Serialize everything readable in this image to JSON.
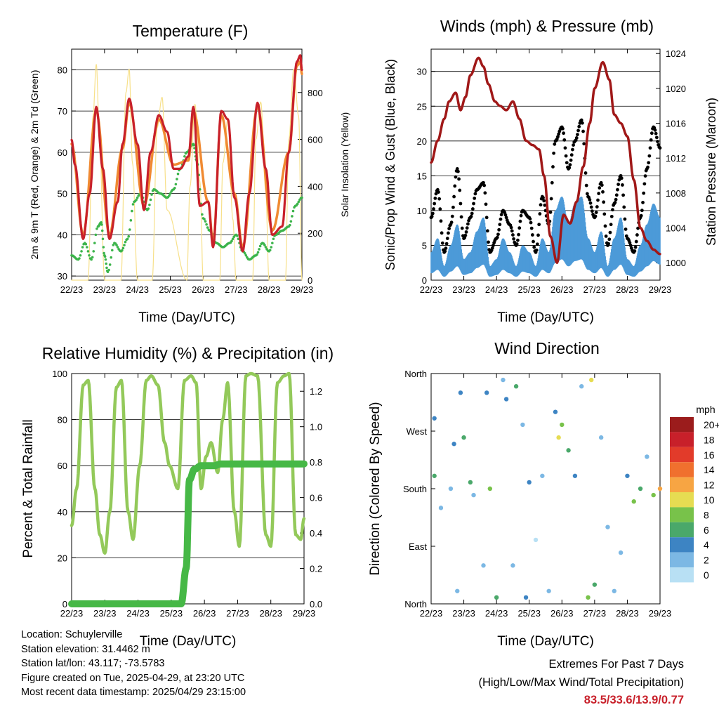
{
  "x_tick_labels": [
    "22/23",
    "23/23",
    "24/23",
    "25/23",
    "26/23",
    "27/23",
    "28/23",
    "29/23"
  ],
  "chart_data": [
    {
      "type": "line",
      "title": "Temperature (F)",
      "xlabel": "Time (Day/UTC)",
      "ylabel": "2m & 9m T (Red, Orange) & 2m Td (Green)",
      "y2label": "Solar Insolation (Yellow)",
      "ylim": [
        29,
        85
      ],
      "yticks": [
        30,
        40,
        50,
        60,
        70,
        80
      ],
      "y2lim": [
        0,
        985
      ],
      "y2ticks": [
        0,
        200,
        400,
        600,
        800
      ],
      "grid": true,
      "colors": {
        "t2m": "#c8202a",
        "t9m": "#f08a32",
        "td": "#3cb44b",
        "solar": "#f7e08a"
      },
      "series": [
        {
          "key": "t2m",
          "x": [
            0.0,
            0.1,
            0.35,
            0.55,
            0.75,
            0.95,
            1.15,
            1.4,
            1.55,
            1.75,
            2.0,
            2.2,
            2.4,
            2.65,
            2.9,
            3.1,
            3.3,
            3.55,
            3.7,
            3.9,
            4.15,
            4.3,
            4.55,
            4.75,
            4.95,
            5.2,
            5.4,
            5.65,
            5.9,
            6.1,
            6.4,
            6.6,
            6.85,
            6.95,
            7.0
          ],
          "y": [
            63.0,
            57.0,
            39.0,
            50.0,
            71.0,
            56.0,
            39.0,
            48.0,
            62.0,
            73.0,
            62.0,
            46.0,
            60.0,
            69.0,
            65.0,
            56.0,
            56.0,
            59.0,
            71.0,
            47.0,
            48.0,
            37.0,
            70.0,
            68.0,
            49.0,
            36.0,
            50.0,
            72.0,
            56.0,
            40.0,
            42.0,
            60.0,
            82.0,
            83.5,
            80.0
          ]
        },
        {
          "key": "t9m",
          "x": [
            0.0,
            0.35,
            0.75,
            1.15,
            1.55,
            1.75,
            2.2,
            2.65,
            3.1,
            3.55,
            3.7,
            4.15,
            4.3,
            4.55,
            4.95,
            5.2,
            5.65,
            6.1,
            6.6,
            6.85,
            6.95,
            7.0
          ],
          "y": [
            62.0,
            40.0,
            70.0,
            40.0,
            61.0,
            72.0,
            47.0,
            68.0,
            57.0,
            58.0,
            70.0,
            48.0,
            38.0,
            69.0,
            50.0,
            37.0,
            71.0,
            41.0,
            60.0,
            81.0,
            82.0,
            79.0
          ]
        },
        {
          "key": "td",
          "x": [
            0.0,
            0.2,
            0.4,
            0.6,
            0.8,
            0.9,
            1.0,
            1.1,
            1.3,
            1.5,
            1.7,
            1.9,
            2.1,
            2.3,
            2.5,
            2.7,
            2.9,
            3.1,
            3.3,
            3.5,
            3.7,
            3.8,
            4.0,
            4.2,
            4.4,
            4.6,
            4.8,
            5.0,
            5.2,
            5.4,
            5.6,
            5.8,
            6.0,
            6.2,
            6.4,
            6.6,
            6.8,
            7.0
          ],
          "y": [
            35.0,
            34.0,
            38.0,
            34.0,
            42.0,
            43.0,
            35.0,
            31.0,
            38.0,
            36.0,
            39.0,
            48.0,
            50.0,
            46.0,
            51.0,
            50.0,
            49.0,
            51.0,
            56.0,
            60.0,
            62.0,
            58.0,
            44.0,
            41.0,
            38.0,
            37.0,
            38.0,
            40.0,
            36.0,
            34.0,
            35.0,
            38.0,
            36.0,
            40.0,
            41.0,
            42.0,
            47.0,
            49.0
          ]
        },
        {
          "key": "solar",
          "x": [
            0.0,
            0.5,
            0.65,
            0.75,
            0.85,
            1.0,
            1.5,
            1.65,
            1.75,
            1.85,
            2.0,
            2.45,
            2.6,
            2.75,
            2.9,
            3.5,
            3.6,
            3.75,
            3.9,
            4.0,
            4.5,
            4.6,
            4.75,
            4.9,
            5.0,
            5.5,
            5.6,
            5.75,
            5.9,
            6.0,
            6.5,
            6.6,
            6.75,
            6.9,
            7.0
          ],
          "y": [
            0.0,
            0.0,
            700.0,
            920.0,
            600.0,
            0.0,
            0.0,
            800.0,
            900.0,
            500.0,
            0.0,
            0.0,
            650.0,
            780.0,
            300.0,
            0.0,
            400.0,
            750.0,
            420.0,
            0.0,
            0.0,
            500.0,
            690.0,
            260.0,
            0.0,
            0.0,
            600.0,
            760.0,
            380.0,
            0.0,
            0.0,
            600.0,
            900.0,
            700.0,
            0.0
          ]
        }
      ]
    },
    {
      "type": "line",
      "title": "Winds (mph) & Pressure (mb)",
      "xlabel": "Time (Day/UTC)",
      "ylabel": "Sonic/Prop Wind & Gust (Blue, Black)",
      "y2label": "Station Pressure (Maroon)",
      "ylim": [
        0,
        33.2
      ],
      "yticks": [
        0,
        5,
        10,
        15,
        20,
        25,
        30
      ],
      "y2lim": [
        998,
        1024.5
      ],
      "y2ticks": [
        1000,
        1004,
        1008,
        1012,
        1016,
        1020,
        1024
      ],
      "grid": true,
      "colors": {
        "wind": "#4c9ad8",
        "gust": "#000000",
        "pressure": "#a01818"
      },
      "series": [
        {
          "key": "wind",
          "x": [
            0.0,
            0.2,
            0.4,
            0.6,
            0.8,
            1.0,
            1.2,
            1.4,
            1.6,
            1.8,
            2.0,
            2.2,
            2.4,
            2.6,
            2.8,
            3.0,
            3.2,
            3.4,
            3.6,
            3.8,
            4.0,
            4.2,
            4.4,
            4.6,
            4.8,
            5.0,
            5.2,
            5.4,
            5.6,
            5.8,
            6.0,
            6.2,
            6.4,
            6.6,
            6.8,
            7.0
          ],
          "y": [
            4.0,
            6.0,
            2.0,
            5.0,
            8.0,
            3.0,
            4.0,
            7.0,
            9.0,
            2.0,
            3.0,
            6.0,
            4.0,
            2.0,
            5.0,
            4.0,
            2.0,
            6.0,
            4.0,
            10.0,
            12.0,
            8.0,
            11.0,
            12.0,
            6.0,
            4.0,
            7.0,
            2.0,
            6.0,
            9.0,
            3.0,
            2.0,
            5.0,
            8.0,
            11.0,
            9.0
          ]
        },
        {
          "key": "gust",
          "x": [
            0.0,
            0.2,
            0.4,
            0.6,
            0.8,
            1.0,
            1.2,
            1.4,
            1.6,
            1.8,
            2.0,
            2.2,
            2.4,
            2.6,
            2.8,
            3.0,
            3.2,
            3.4,
            3.6,
            3.8,
            4.0,
            4.2,
            4.4,
            4.6,
            4.8,
            5.0,
            5.2,
            5.4,
            5.6,
            5.8,
            6.0,
            6.2,
            6.4,
            6.6,
            6.8,
            7.0
          ],
          "y": [
            9.0,
            13.0,
            4.0,
            8.0,
            16.0,
            6.0,
            9.0,
            13.0,
            14.0,
            4.0,
            6.0,
            10.0,
            8.0,
            5.0,
            10.0,
            9.0,
            4.0,
            12.0,
            8.0,
            20.0,
            22.0,
            16.0,
            20.0,
            23.0,
            12.0,
            9.0,
            14.0,
            5.0,
            11.0,
            15.0,
            6.0,
            4.0,
            9.0,
            16.0,
            22.0,
            19.0
          ]
        },
        {
          "key": "pressure",
          "x": [
            0.0,
            0.2,
            0.4,
            0.55,
            0.75,
            0.9,
            1.05,
            1.2,
            1.45,
            1.6,
            1.75,
            1.95,
            2.1,
            2.3,
            2.5,
            2.7,
            2.9,
            3.1,
            3.3,
            3.45,
            3.65,
            3.85,
            4.05,
            4.25,
            4.45,
            4.65,
            4.85,
            5.0,
            5.25,
            5.45,
            5.6,
            5.8,
            6.0,
            6.2,
            6.4,
            6.6,
            6.8,
            7.0
          ],
          "y": [
            1011.5,
            1014.0,
            1016.5,
            1018.5,
            1019.5,
            1017.5,
            1019.0,
            1021.5,
            1023.5,
            1022.5,
            1020.5,
            1018.5,
            1018.0,
            1017.5,
            1018.5,
            1016.5,
            1014.0,
            1013.5,
            1013.0,
            1010.0,
            1003.0,
            1000.0,
            1005.5,
            1004.5,
            1007.0,
            1011.0,
            1016.0,
            1020.0,
            1023.0,
            1021.0,
            1017.0,
            1016.0,
            1014.5,
            1009.5,
            1004.0,
            1002.5,
            1001.5,
            1001.0
          ]
        }
      ]
    },
    {
      "type": "line",
      "title": "Relative Humidity (%) & Precipitation (in)",
      "xlabel": "Time (Day/UTC)",
      "ylabel": "Percent & Total Rainfall",
      "ylim": [
        0,
        100
      ],
      "yticks": [
        0,
        20,
        40,
        60,
        80,
        100
      ],
      "y2lim": [
        0,
        1.3
      ],
      "y2ticks": [
        0.0,
        0.2,
        0.4,
        0.6,
        0.8,
        1.0,
        1.2
      ],
      "grid": true,
      "colors": {
        "rh": "#93c95a",
        "precip": "#46b846"
      },
      "series": [
        {
          "key": "rh",
          "x": [
            0.0,
            0.15,
            0.35,
            0.5,
            0.7,
            0.85,
            1.0,
            1.15,
            1.35,
            1.5,
            1.7,
            1.85,
            2.05,
            2.25,
            2.4,
            2.6,
            2.8,
            2.95,
            3.2,
            3.4,
            3.6,
            3.75,
            3.9,
            4.05,
            4.2,
            4.4,
            4.55,
            4.7,
            4.9,
            5.05,
            5.25,
            5.4,
            5.6,
            5.85,
            6.0,
            6.2,
            6.4,
            6.55,
            6.75,
            6.9,
            7.0
          ],
          "y": [
            34.0,
            50.0,
            95.0,
            97.0,
            50.0,
            30.0,
            22.0,
            40.0,
            94.0,
            97.0,
            40.0,
            28.0,
            60.0,
            97.0,
            99.0,
            95.0,
            70.0,
            60.0,
            50.0,
            97.0,
            99.0,
            96.0,
            50.0,
            64.0,
            70.0,
            57.0,
            80.0,
            96.0,
            40.0,
            25.0,
            99.0,
            100.0,
            99.0,
            30.0,
            25.0,
            96.0,
            99.0,
            100.0,
            30.0,
            28.0,
            37.0
          ]
        },
        {
          "key": "precip",
          "x": [
            0.0,
            3.3,
            3.45,
            3.55,
            3.7,
            3.9,
            4.3,
            4.5,
            7.0
          ],
          "y": [
            0.0,
            0.0,
            0.2,
            0.7,
            0.76,
            0.78,
            0.78,
            0.79,
            0.79
          ]
        }
      ]
    },
    {
      "type": "scatter",
      "title": "Wind Direction",
      "xlabel": "Time (Day/UTC)",
      "ylabel": "Direction (Colored By Speed)",
      "ylim": [
        0,
        360
      ],
      "yticks": [
        "North",
        "East",
        "South",
        "West",
        "North"
      ],
      "legend": {
        "title": "mph",
        "position": "right",
        "labels": [
          "20+",
          "18",
          "16",
          "14",
          "12",
          "10",
          "8",
          "6",
          "4",
          "2",
          "0"
        ],
        "colors": [
          "#9b1c1c",
          "#c8202a",
          "#e23b2a",
          "#f0702e",
          "#f7a543",
          "#e6dc52",
          "#78c24a",
          "#4aa86a",
          "#3d84c3",
          "#7cb8e4",
          "#b8e0f4"
        ]
      },
      "series": [
        {
          "name": "wind direction",
          "x": [
            0.1,
            0.1,
            0.3,
            0.6,
            0.7,
            0.8,
            0.9,
            1.0,
            1.2,
            1.3,
            1.6,
            1.7,
            1.8,
            2.0,
            2.2,
            2.3,
            2.5,
            2.6,
            2.8,
            2.9,
            3.0,
            3.2,
            3.4,
            3.6,
            3.8,
            3.9,
            4.0,
            4.2,
            4.4,
            4.6,
            4.8,
            4.9,
            5.0,
            5.2,
            5.4,
            5.6,
            5.8,
            6.0,
            6.2,
            6.4,
            6.6,
            6.8,
            7.0
          ],
          "y": [
            290,
            200,
            150,
            180,
            250,
            20,
            330,
            260,
            190,
            170,
            60,
            330,
            180,
            10,
            350,
            320,
            60,
            340,
            280,
            10,
            190,
            100,
            200,
            20,
            300,
            260,
            280,
            240,
            200,
            340,
            10,
            350,
            30,
            260,
            120,
            20,
            80,
            200,
            160,
            180,
            230,
            170,
            180
          ],
          "speed": [
            4,
            6,
            2,
            3,
            5,
            2,
            4,
            6,
            7,
            2,
            3,
            4,
            8,
            6,
            3,
            4,
            2,
            6,
            3,
            4,
            5,
            1,
            3,
            2,
            4,
            10,
            9,
            6,
            4,
            2,
            8,
            11,
            6,
            3,
            2,
            2,
            3,
            4,
            8,
            6,
            3,
            9,
            12
          ]
        }
      ]
    }
  ],
  "info": {
    "location": "Location: Schuylerville",
    "elevation": "Station elevation: 31.4462 m",
    "latlon": "Station lat/lon: 43.117; -73.5783",
    "created": "Figure created on Tue, 2025-04-29, at 23:20 UTC",
    "latest": "Most recent data timestamp: 2025/04/29 23:15:00"
  },
  "extremes": {
    "title": "Extremes For Past 7 Days",
    "subtitle": "(High/Low/Max Wind/Total Precipitation)",
    "values": "83.5/33.6/13.9/0.77"
  }
}
